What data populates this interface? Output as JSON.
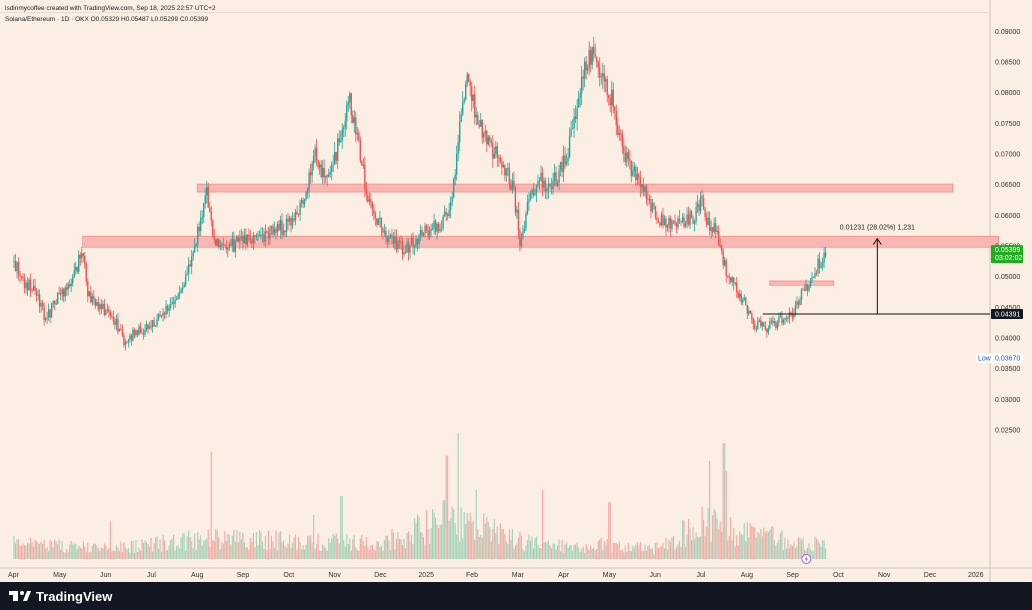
{
  "header": {
    "attribution": "lsdinmycoffee created with TradingView.com, Sep 18, 2025 22:57 UTC+2",
    "symbol_line": "Solana/Ethereum · 1D · OKX  O0.05329  H0.05487  L0.05299  C0.05399"
  },
  "footer": {
    "brand": "TradingView"
  },
  "colors": {
    "background": "#fbeee2",
    "up": "#26a69a",
    "down": "#ef5350",
    "zone": "#f7a8a5",
    "zone_edge": "#f07c78",
    "current_price_bg": "#22ab22",
    "footer_bg": "#131722"
  },
  "chart_data": {
    "type": "candlestick",
    "instrument": "Solana/Ethereum",
    "timeframe": "1D",
    "exchange": "OKX",
    "last_candle": {
      "open": 0.05329,
      "high": 0.05487,
      "low": 0.05299,
      "close": 0.05399
    },
    "y_axis": {
      "range": [
        0.0235,
        0.0915
      ],
      "ticks": [
        0.025,
        0.03,
        0.035,
        0.04,
        0.045,
        0.05,
        0.055,
        0.06,
        0.065,
        0.07,
        0.075,
        0.08,
        0.085,
        0.09
      ],
      "tick_labels": [
        "0.02500",
        "0.03000",
        "0.03500",
        "0.04000",
        "0.04500",
        "0.05000",
        "0.05500",
        "0.06000",
        "0.06500",
        "0.07000",
        "0.07500",
        "0.08000",
        "0.08500",
        "0.09000"
      ]
    },
    "x_axis": {
      "labels": [
        "Apr",
        "May",
        "Jun",
        "Jul",
        "Aug",
        "Sep",
        "Oct",
        "Nov",
        "Dec",
        "2025",
        "Feb",
        "Mar",
        "Apr",
        "May",
        "Jun",
        "Jul",
        "Aug",
        "Sep",
        "Oct",
        "Nov",
        "Dec",
        "2026"
      ],
      "label_month_index": [
        0,
        1,
        2,
        3,
        4,
        5,
        6,
        7,
        8,
        9,
        10,
        11,
        12,
        13,
        14,
        15,
        16,
        17,
        18,
        19,
        20,
        21
      ]
    },
    "price_path": [
      [
        0.0,
        0.0525
      ],
      [
        0.2,
        0.049
      ],
      [
        0.45,
        0.048
      ],
      [
        0.7,
        0.043
      ],
      [
        0.95,
        0.0465
      ],
      [
        1.2,
        0.048
      ],
      [
        1.5,
        0.0545
      ],
      [
        1.62,
        0.047
      ],
      [
        1.9,
        0.045
      ],
      [
        2.15,
        0.044
      ],
      [
        2.4,
        0.0395
      ],
      [
        2.7,
        0.041
      ],
      [
        3.0,
        0.042
      ],
      [
        3.3,
        0.0445
      ],
      [
        3.6,
        0.0475
      ],
      [
        3.9,
        0.053
      ],
      [
        4.2,
        0.064
      ],
      [
        4.35,
        0.0555
      ],
      [
        4.6,
        0.0545
      ],
      [
        4.9,
        0.0555
      ],
      [
        5.2,
        0.056
      ],
      [
        5.5,
        0.057
      ],
      [
        5.85,
        0.058
      ],
      [
        6.1,
        0.0585
      ],
      [
        6.4,
        0.0645
      ],
      [
        6.55,
        0.0705
      ],
      [
        6.8,
        0.066
      ],
      [
        7.0,
        0.069
      ],
      [
        7.15,
        0.074
      ],
      [
        7.3,
        0.0795
      ],
      [
        7.5,
        0.072
      ],
      [
        7.7,
        0.064
      ],
      [
        7.95,
        0.059
      ],
      [
        8.2,
        0.056
      ],
      [
        8.5,
        0.0545
      ],
      [
        8.7,
        0.0555
      ],
      [
        8.95,
        0.0575
      ],
      [
        9.2,
        0.058
      ],
      [
        9.5,
        0.06
      ],
      [
        9.7,
        0.072
      ],
      [
        9.9,
        0.083
      ],
      [
        10.1,
        0.076
      ],
      [
        10.3,
        0.073
      ],
      [
        10.5,
        0.07
      ],
      [
        10.7,
        0.068
      ],
      [
        10.9,
        0.064
      ],
      [
        11.05,
        0.056
      ],
      [
        11.25,
        0.062
      ],
      [
        11.5,
        0.066
      ],
      [
        11.7,
        0.064
      ],
      [
        11.95,
        0.068
      ],
      [
        12.15,
        0.072
      ],
      [
        12.35,
        0.08
      ],
      [
        12.5,
        0.0855
      ],
      [
        12.65,
        0.086
      ],
      [
        12.85,
        0.0815
      ],
      [
        13.05,
        0.079
      ],
      [
        13.25,
        0.072
      ],
      [
        13.45,
        0.068
      ],
      [
        13.65,
        0.0665
      ],
      [
        13.85,
        0.062
      ],
      [
        14.05,
        0.0595
      ],
      [
        14.3,
        0.0585
      ],
      [
        14.55,
        0.059
      ],
      [
        14.8,
        0.0595
      ],
      [
        15.0,
        0.062
      ],
      [
        15.15,
        0.059
      ],
      [
        15.35,
        0.057
      ],
      [
        15.55,
        0.051
      ],
      [
        15.75,
        0.048
      ],
      [
        15.95,
        0.046
      ],
      [
        16.15,
        0.0425
      ],
      [
        16.4,
        0.0415
      ],
      [
        16.6,
        0.0425
      ],
      [
        16.85,
        0.043
      ],
      [
        17.0,
        0.044
      ],
      [
        17.2,
        0.047
      ],
      [
        17.4,
        0.0495
      ],
      [
        17.6,
        0.0525
      ],
      [
        17.72,
        0.05399
      ]
    ],
    "volume_profile": [
      [
        0,
        0.15
      ],
      [
        2,
        0.1
      ],
      [
        4,
        0.2
      ],
      [
        6,
        0.18
      ],
      [
        8,
        0.15
      ],
      [
        9.5,
        0.4
      ],
      [
        10,
        0.35
      ],
      [
        11,
        0.18
      ],
      [
        12,
        0.12
      ],
      [
        13,
        0.15
      ],
      [
        14,
        0.1
      ],
      [
        15,
        0.35
      ],
      [
        16,
        0.25
      ],
      [
        17,
        0.18
      ],
      [
        17.72,
        0.15
      ]
    ],
    "volume_spikes": [
      {
        "month": 4.3,
        "size": 0.85
      },
      {
        "month": 9.45,
        "size": 0.82
      },
      {
        "month": 9.7,
        "size": 1.0
      },
      {
        "month": 10.1,
        "size": 0.55
      },
      {
        "month": 7.15,
        "size": 0.5
      },
      {
        "month": 6.55,
        "size": 0.35
      },
      {
        "month": 15.2,
        "size": 0.78
      },
      {
        "month": 15.5,
        "size": 0.92
      },
      {
        "month": 15.55,
        "size": 0.7
      },
      {
        "month": 11.55,
        "size": 0.55
      },
      {
        "month": 13.0,
        "size": 0.45
      },
      {
        "month": 2.1,
        "size": 0.3
      }
    ],
    "zones": [
      {
        "from_month": 4.0,
        "to_month": 20.5,
        "low": 0.0638,
        "high": 0.0651
      },
      {
        "from_month": 1.5,
        "to_month": 21.5,
        "low": 0.0548,
        "high": 0.0566
      },
      {
        "from_month": 16.5,
        "to_month": 17.9,
        "low": 0.0486,
        "high": 0.0493
      }
    ],
    "support_line": {
      "price": 0.04391,
      "from_month": 16.35
    },
    "measure": {
      "from_price": 0.04391,
      "to_price": 0.0562,
      "month": 18.85,
      "label": "0.01231 (28.02%) 1,231"
    },
    "price_labels": {
      "last_price": "0.05399",
      "countdown": "03:02:02",
      "support": "0.04391",
      "low_tag": "Low",
      "low_value": "0.03670"
    },
    "low_price": 0.0367
  }
}
